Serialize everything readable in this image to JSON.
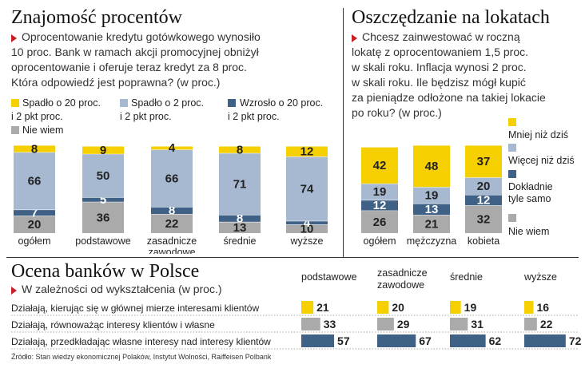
{
  "colors": {
    "yellow": "#f5cf00",
    "lightblue": "#a7b9d0",
    "darkblue": "#3f6185",
    "gray": "#aaaaaa",
    "accent": "#c8202a"
  },
  "panel1": {
    "title": "Znajomość procentów",
    "question": [
      "Oprocentowanie kredytu gotówkowego wynosiło",
      "10 proc. Bank w ramach akcji promocyjnej obniżył",
      "oprocentowanie i oferuje teraz kredyt za 8 proc.",
      "Która odpowiedź jest poprawna? (w proc.)"
    ],
    "legend": [
      {
        "lines": [
          "Spadło o 20 proc.",
          "i 2 pkt proc."
        ]
      },
      {
        "lines": [
          "Spadło o 2 proc.",
          "i 2 pkt proc."
        ]
      },
      {
        "lines": [
          "Wzrosło o 20 proc.",
          "i 2 pkt proc."
        ]
      },
      {
        "lines": [
          "Nie wiem"
        ]
      }
    ]
  },
  "panel2": {
    "title": "Oszczędzanie na lokatach",
    "question": [
      "Chcesz  zainwestować w roczną",
      "lokatę z oprocentowaniem 1,5 proc.",
      "w skali roku. Inflacja wynosi 2 proc.",
      "w skali roku. Ile będzisz mógł kupić",
      "za pieniądze odłożone na takiej lokacie",
      "po roku? (w proc.)"
    ],
    "legend": [
      {
        "lines": [
          "Mniej niż dziś"
        ]
      },
      {
        "lines": [
          "Więcej niż dziś"
        ]
      },
      {
        "lines": [
          "Dokładnie",
          "tyle samo"
        ]
      },
      {
        "lines": [
          "Nie wiem"
        ]
      }
    ]
  },
  "panel3": {
    "title": "Ocena banków w Polsce",
    "subtitle": "W zależności od wykształcenia (w proc.)",
    "columns": [
      [
        "podstawowe"
      ],
      [
        "zasadnicze",
        "zawodowe"
      ],
      [
        "średnie"
      ],
      [
        "wyższe"
      ]
    ],
    "rows": [
      "Działają, kierując się w głównej mierze interesami klientów",
      "Działają, równoważąc interesy klientów i własne",
      "Działają, przedkładając własne interesy nad interesy klientów"
    ]
  },
  "source": "Źródło: Stan wiedzy ekonomicznej Polaków, Instytut Wolności, Raiffeisen Polbank",
  "chart_data": [
    {
      "type": "bar",
      "stacked": true,
      "title": "Znajomość procentów",
      "categories": [
        "ogółem",
        "podstawowe",
        "zasadnicze zawodowe",
        "średnie",
        "wyższe"
      ],
      "series": [
        {
          "name": "Nie wiem",
          "color": "#aaaaaa",
          "values": [
            20,
            36,
            22,
            13,
            10
          ]
        },
        {
          "name": "Wzrosło o 20 proc. i 2 pkt proc.",
          "color": "#3f6185",
          "values": [
            7,
            5,
            8,
            8,
            4
          ]
        },
        {
          "name": "Spadło o 2 proc. i 2 pkt proc.",
          "color": "#a7b9d0",
          "values": [
            66,
            50,
            66,
            71,
            74
          ]
        },
        {
          "name": "Spadło o 20 proc. i 2 pkt proc.",
          "color": "#f5cf00",
          "values": [
            8,
            9,
            4,
            8,
            12
          ]
        }
      ],
      "legend": "top"
    },
    {
      "type": "bar",
      "stacked": true,
      "title": "Oszczędzanie na lokatach",
      "categories": [
        "ogółem",
        "mężczyzna",
        "kobieta"
      ],
      "series": [
        {
          "name": "Nie wiem",
          "color": "#aaaaaa",
          "values": [
            26,
            21,
            32
          ]
        },
        {
          "name": "Dokładnie tyle samo",
          "color": "#3f6185",
          "values": [
            12,
            13,
            12
          ]
        },
        {
          "name": "Więcej niż dziś",
          "color": "#a7b9d0",
          "values": [
            19,
            19,
            20
          ]
        },
        {
          "name": "Mniej niż dziś",
          "color": "#f5cf00",
          "values": [
            42,
            48,
            37
          ]
        }
      ],
      "legend": "right"
    },
    {
      "type": "bar",
      "orientation": "horizontal",
      "title": "Ocena banków w Polsce",
      "categories": [
        "Działają, kierując się w głównej mierze interesami klientów",
        "Działają, równoważąc interesy klientów i własne",
        "Działają, przedkładając własne interesy nad interesy klientów"
      ],
      "row_colors": [
        "#f5cf00",
        "#aaaaaa",
        "#3f6185"
      ],
      "series": [
        {
          "name": "podstawowe",
          "values": [
            21,
            33,
            57
          ]
        },
        {
          "name": "zasadnicze zawodowe",
          "values": [
            20,
            29,
            67
          ]
        },
        {
          "name": "średnie",
          "values": [
            19,
            31,
            62
          ]
        },
        {
          "name": "wyższe",
          "values": [
            16,
            22,
            72
          ]
        }
      ]
    }
  ]
}
